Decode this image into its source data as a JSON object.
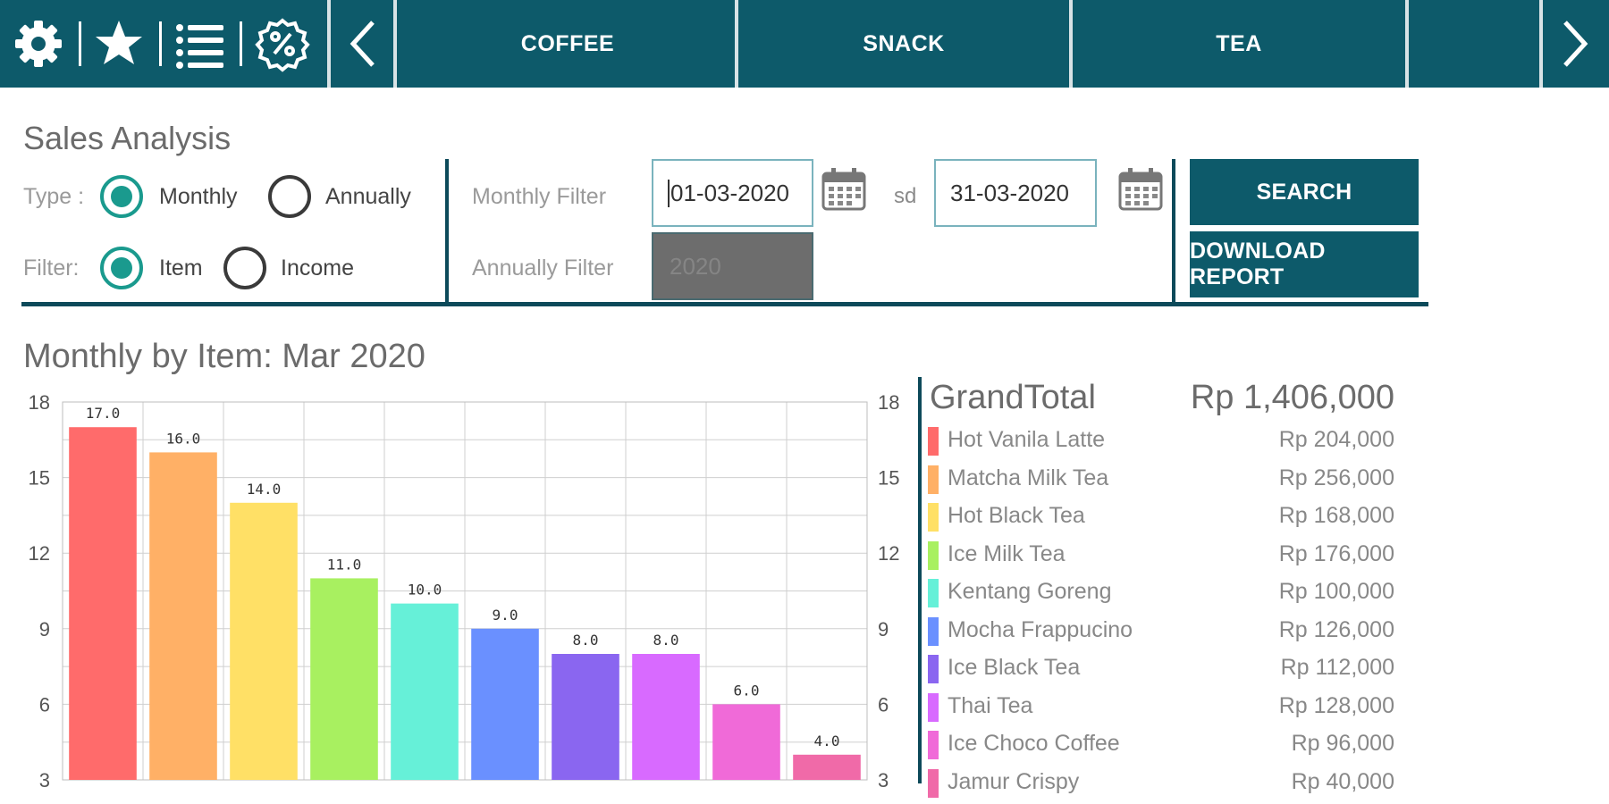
{
  "toolbar": {
    "icons": [
      "gear-icon",
      "star-icon",
      "list-icon",
      "percent-badge-icon"
    ],
    "nav_prev": "chevron-left-icon",
    "nav_next": "chevron-right-icon",
    "categories": [
      "COFFEE",
      "SNACK",
      "TEA"
    ]
  },
  "panel": {
    "title": "Sales Analysis",
    "type_label": "Type :",
    "type_options": [
      "Monthly",
      "Annually"
    ],
    "type_selected": "Monthly",
    "filter_label": "Filter:",
    "filter_options": [
      "Item",
      "Income"
    ],
    "filter_selected": "Item",
    "monthly_filter_label": "Monthly Filter",
    "annually_filter_label": "Annually Filter",
    "date_from": "01-03-2020",
    "date_to": "31-03-2020",
    "sd_label": "sd",
    "year_value": "2020",
    "search_button": "SEARCH",
    "download_button": "DOWNLOAD REPORT"
  },
  "chart_title": "Monthly by Item: Mar 2020",
  "chart_data": {
    "type": "bar",
    "categories": [
      "Hot Vanila Latte",
      "Matcha Milk Tea",
      "Hot Black Tea",
      "Ice Milk Tea",
      "Kentang Goreng",
      "Mocha Frappucino",
      "Ice Black Tea",
      "Thai Tea",
      "Ice Choco Coffee",
      "Jamur Crispy"
    ],
    "values": [
      17.0,
      16.0,
      14.0,
      11.0,
      10.0,
      9.0,
      8.0,
      8.0,
      6.0,
      4.0
    ],
    "value_labels": [
      "17.0",
      "16.0",
      "14.0",
      "11.0",
      "10.0",
      "9.0",
      "8.0",
      "8.0",
      "6.0",
      "4.0"
    ],
    "colors": [
      "#ff6b6b",
      "#ffb066",
      "#ffe066",
      "#a8f060",
      "#66f0d8",
      "#6a90ff",
      "#8a66f0",
      "#d86aff",
      "#f06ad8",
      "#f06aa8"
    ],
    "yticks": [
      "3",
      "6",
      "9",
      "12",
      "15",
      "18"
    ],
    "ylim": [
      3,
      18
    ],
    "grid": true,
    "title": "Monthly by Item: Mar 2020",
    "xlabel": "",
    "ylabel": ""
  },
  "legend": {
    "grand_total_label": "GrandTotal",
    "grand_total_value": "Rp  1,406,000",
    "items": [
      {
        "name": "Hot Vanila Latte",
        "amount": "Rp  204,000",
        "color": "#ff6b6b"
      },
      {
        "name": "Matcha Milk Tea",
        "amount": "Rp  256,000",
        "color": "#ffb066"
      },
      {
        "name": "Hot Black Tea",
        "amount": "Rp  168,000",
        "color": "#ffe066"
      },
      {
        "name": "Ice Milk Tea",
        "amount": "Rp  176,000",
        "color": "#a8f060"
      },
      {
        "name": "Kentang Goreng",
        "amount": "Rp  100,000",
        "color": "#66f0d8"
      },
      {
        "name": "Mocha Frappucino",
        "amount": "Rp  126,000",
        "color": "#6a90ff"
      },
      {
        "name": "Ice Black Tea",
        "amount": "Rp  112,000",
        "color": "#8a66f0"
      },
      {
        "name": "Thai Tea",
        "amount": "Rp  128,000",
        "color": "#d86aff"
      },
      {
        "name": "Ice Choco Coffee",
        "amount": "Rp  96,000",
        "color": "#f06ad8"
      },
      {
        "name": "Jamur Crispy",
        "amount": "Rp  40,000",
        "color": "#f06aa8"
      }
    ]
  },
  "colors": {
    "brand": "#0d5a6a",
    "radio_accent": "#1a9a8e"
  }
}
